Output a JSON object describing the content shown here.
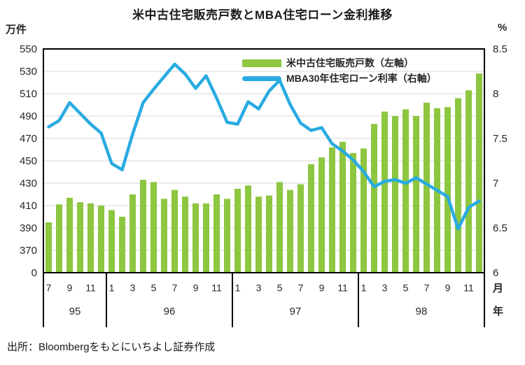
{
  "title": "米中古住宅販売戸数とMBA住宅ローン金利推移",
  "source": "出所：Bloombergをもとにいちよし証券作成",
  "left_axis": {
    "unit": "万件",
    "ticks": [
      "550",
      "530",
      "510",
      "490",
      "470",
      "450",
      "430",
      "410",
      "390",
      "370",
      "0"
    ]
  },
  "right_axis": {
    "unit": "%",
    "ticks": [
      "8.5",
      "8",
      "7.5",
      "7",
      "6.5",
      "6"
    ]
  },
  "x_axis": {
    "month_unit": "月",
    "year_unit": "年",
    "years": [
      {
        "label": "95",
        "first_month": 7,
        "last_month": 12,
        "tick_months": [
          7,
          9,
          11
        ]
      },
      {
        "label": "96",
        "first_month": 1,
        "last_month": 12,
        "tick_months": [
          1,
          3,
          5,
          7,
          9,
          11
        ]
      },
      {
        "label": "97",
        "first_month": 1,
        "last_month": 12,
        "tick_months": [
          1,
          3,
          5,
          7,
          9,
          11
        ]
      },
      {
        "label": "98",
        "first_month": 1,
        "last_month": 12,
        "tick_months": [
          1,
          3,
          5,
          7,
          9,
          11
        ]
      }
    ]
  },
  "legend": [
    {
      "label": "米中古住宅販売戸数（左軸）",
      "type": "bar",
      "color": "#8DC63F"
    },
    {
      "label": "MBA30年住宅ローン利率（右軸）",
      "type": "line",
      "color": "#29ABE2"
    }
  ],
  "colors": {
    "bar": "#8DC63F",
    "line": "#29ABE2",
    "grid": "#D9D9D9",
    "axis": "#000000",
    "text": "#262626"
  },
  "chart_data": {
    "type": "combo",
    "categories": [
      "1995-07",
      "1995-08",
      "1995-09",
      "1995-10",
      "1995-11",
      "1995-12",
      "1996-01",
      "1996-02",
      "1996-03",
      "1996-04",
      "1996-05",
      "1996-06",
      "1996-07",
      "1996-08",
      "1996-09",
      "1996-10",
      "1996-11",
      "1996-12",
      "1997-01",
      "1997-02",
      "1997-03",
      "1997-04",
      "1997-05",
      "1997-06",
      "1997-07",
      "1997-08",
      "1997-09",
      "1997-10",
      "1997-11",
      "1997-12",
      "1998-01",
      "1998-02",
      "1998-03",
      "1998-04",
      "1998-05",
      "1998-06",
      "1998-07",
      "1998-08",
      "1998-09",
      "1998-10",
      "1998-11",
      "1998-12"
    ],
    "series": [
      {
        "name": "米中古住宅販売戸数（左軸）",
        "type": "bar",
        "axis": "left",
        "values": [
          395,
          411,
          417,
          413,
          412,
          410,
          406,
          400,
          420,
          433,
          431,
          416,
          424,
          418,
          412,
          412,
          420,
          416,
          425,
          428,
          418,
          419,
          431,
          424,
          429,
          447,
          453,
          462,
          467,
          457,
          461,
          483,
          494,
          490,
          496,
          490,
          502,
          497,
          498,
          506,
          513,
          528
        ]
      },
      {
        "name": "MBA30年住宅ローン利率（右軸）",
        "type": "line",
        "axis": "right",
        "values": [
          7.63,
          7.7,
          7.9,
          7.78,
          7.66,
          7.56,
          7.22,
          7.15,
          7.55,
          7.9,
          8.05,
          8.19,
          8.33,
          8.22,
          8.06,
          8.2,
          7.95,
          7.68,
          7.66,
          7.91,
          7.83,
          8.03,
          8.15,
          7.88,
          7.67,
          7.59,
          7.62,
          7.44,
          7.36,
          7.26,
          7.13,
          6.96,
          7.02,
          7.04,
          7.0,
          7.06,
          6.99,
          6.92,
          6.85,
          6.49,
          6.73,
          6.8
        ]
      }
    ],
    "left_axis_range": [
      370,
      550
    ],
    "left_axis_break_to_zero": true,
    "left_axis_step": 20,
    "right_axis_range": [
      6,
      8.5
    ],
    "right_axis_step": 0.5,
    "grid": true,
    "legend_position": "top-inside"
  }
}
